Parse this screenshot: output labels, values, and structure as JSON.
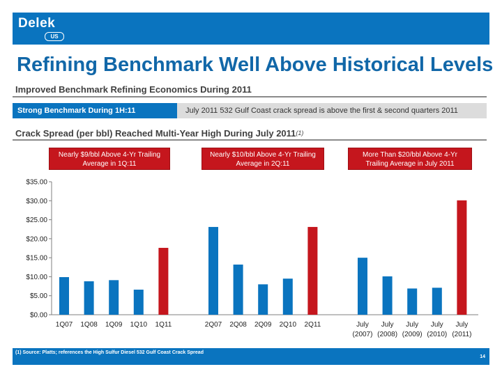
{
  "logo": {
    "word": "Delek",
    "badge": "US"
  },
  "page_title": "Refining Benchmark Well Above Historical Levels",
  "section1": {
    "heading": "Improved Benchmark Refining Economics During 2011"
  },
  "band": {
    "tab_label": "Strong Benchmark During 1H:11",
    "text": "July 2011 532 Gulf Coast crack spread is above the first & second quarters 2011"
  },
  "section2": {
    "heading": "Crack Spread (per bbl) Reached Multi-Year High During July 2011",
    "note_ref": "(1)"
  },
  "callouts": [
    "Nearly $9/bbl Above 4-Yr Trailing Average in 1Q:11",
    "Nearly $10/bbl Above 4-Yr Trailing Average in 2Q:11",
    "More Than $20/bbl Above 4-Yr Trailing Average in July 2011"
  ],
  "colors": {
    "header_blue": "#0a74bf",
    "bar_blue": "#0a74bf",
    "bar_red": "#c5161d",
    "title_blue": "#1167a8"
  },
  "chart_data": {
    "type": "bar",
    "title": "",
    "xlabel": "",
    "ylabel": "",
    "ylim": [
      0,
      35
    ],
    "yticks": [
      "$0.00",
      "$5.00",
      "$10.00",
      "$15.00",
      "$20.00",
      "$25.00",
      "$30.00",
      "$35.00"
    ],
    "grid": false,
    "groups": [
      {
        "bars": [
          {
            "label": "1Q07",
            "value": 9.9,
            "highlight": false
          },
          {
            "label": "1Q08",
            "value": 8.8,
            "highlight": false
          },
          {
            "label": "1Q09",
            "value": 9.1,
            "highlight": false
          },
          {
            "label": "1Q10",
            "value": 6.6,
            "highlight": false
          },
          {
            "label": "1Q11",
            "value": 17.6,
            "highlight": true
          }
        ]
      },
      {
        "bars": [
          {
            "label": "2Q07",
            "value": 23.1,
            "highlight": false
          },
          {
            "label": "2Q08",
            "value": 13.2,
            "highlight": false
          },
          {
            "label": "2Q09",
            "value": 8.0,
            "highlight": false
          },
          {
            "label": "2Q10",
            "value": 9.5,
            "highlight": false
          },
          {
            "label": "2Q11",
            "value": 23.1,
            "highlight": true
          }
        ]
      },
      {
        "bars": [
          {
            "label": "July",
            "sublabel": "(2007)",
            "value": 15.0,
            "highlight": false
          },
          {
            "label": "July",
            "sublabel": "(2008)",
            "value": 10.1,
            "highlight": false
          },
          {
            "label": "July",
            "sublabel": "(2009)",
            "value": 6.9,
            "highlight": false
          },
          {
            "label": "July",
            "sublabel": "(2010)",
            "value": 7.1,
            "highlight": false
          },
          {
            "label": "July",
            "sublabel": "(2011)",
            "value": 30.1,
            "highlight": true
          }
        ]
      }
    ]
  },
  "footnote": "(1)  Source:  Platts; references the High Sulfur Diesel 532 Gulf Coast Crack Spread",
  "page_number": "14"
}
